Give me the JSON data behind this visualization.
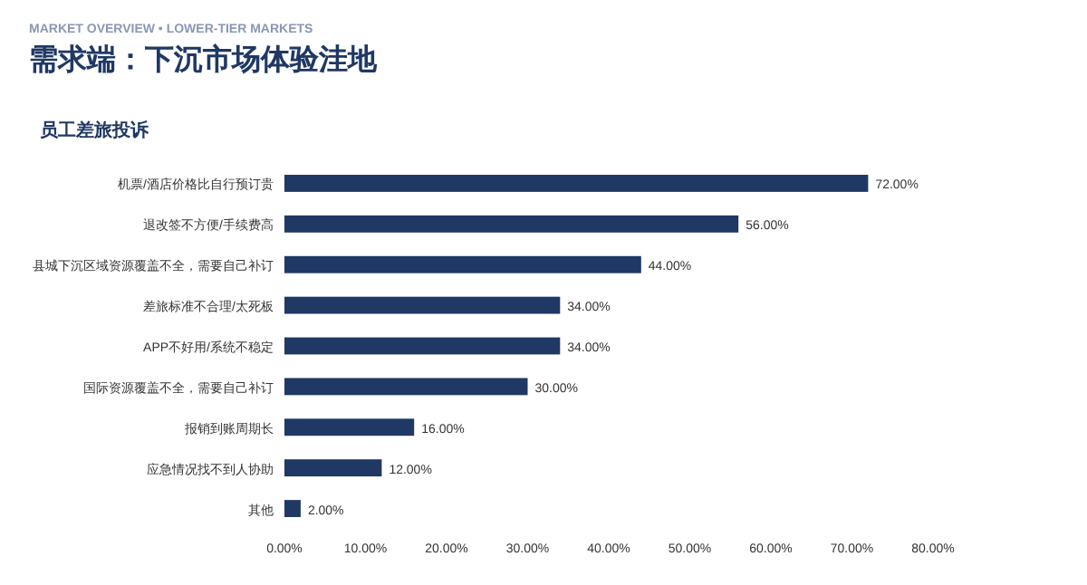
{
  "chart_data": {
    "type": "bar",
    "orientation": "horizontal",
    "subtitle": "MARKET OVERVIEW • LOWER-TIER MARKETS",
    "title": "需求端：下沉市场体验洼地",
    "annotations": [
      "员工差旅投诉"
    ],
    "categories": [
      "机票/酒店价格比自行预订贵",
      "退改签不方便/手续费高",
      "县城下沉区域资源覆盖不全，需要自己补订",
      "差旅标准不合理/太死板",
      "APP不好用/系统不稳定",
      "国际资源覆盖不全，需要自己补订",
      "报销到账周期长",
      "应急情况找不到人协助",
      "其他"
    ],
    "values": [
      72,
      56,
      44,
      34,
      34,
      30,
      16,
      12,
      2
    ],
    "value_labels": [
      "72.00%",
      "56.00%",
      "44.00%",
      "34.00%",
      "34.00%",
      "30.00%",
      "16.00%",
      "12.00%",
      "2.00%"
    ],
    "color": "#1f3864",
    "xlim": [
      0,
      80
    ],
    "xticks": [
      {
        "value": 0,
        "label": "0.00%"
      },
      {
        "value": 10,
        "label": "10.00%"
      },
      {
        "value": 20,
        "label": "20.00%"
      },
      {
        "value": 30,
        "label": "30.00%"
      },
      {
        "value": 40,
        "label": "40.00%"
      },
      {
        "value": 50,
        "label": "50.00%"
      },
      {
        "value": 60,
        "label": "60.00%"
      },
      {
        "value": 70,
        "label": "70.00%"
      },
      {
        "value": 80,
        "label": "80.00%"
      }
    ]
  }
}
